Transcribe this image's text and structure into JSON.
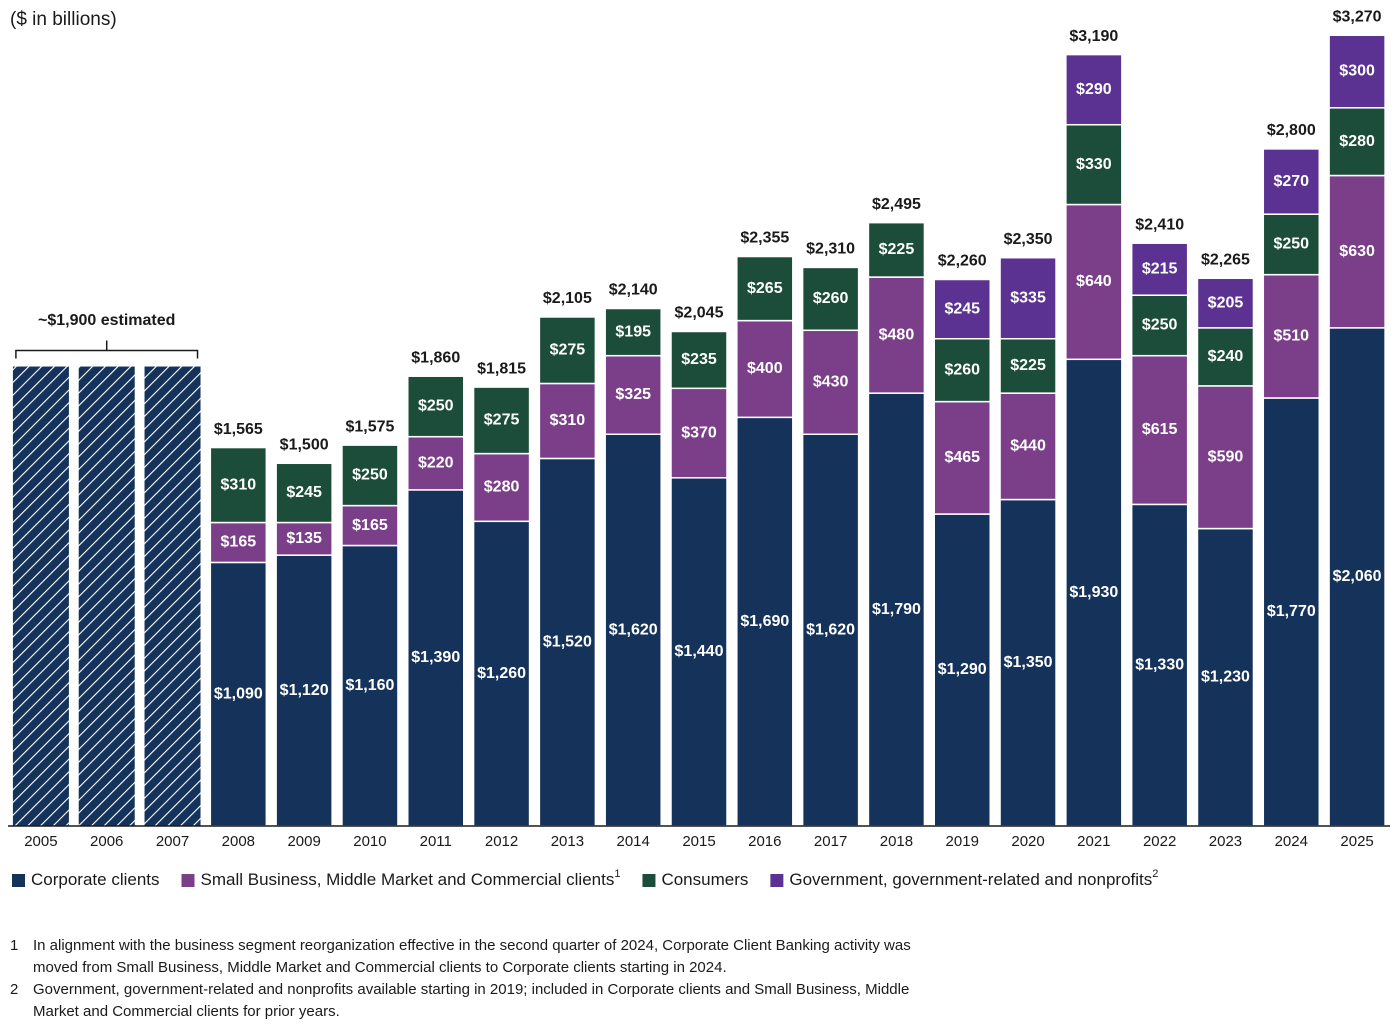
{
  "chart_data": {
    "type": "stacked-bar",
    "unit_label": "($ in billions)",
    "categories": [
      "2005",
      "2006",
      "2007",
      "2008",
      "2009",
      "2010",
      "2011",
      "2012",
      "2013",
      "2014",
      "2015",
      "2016",
      "2017",
      "2018",
      "2019",
      "2020",
      "2021",
      "2022",
      "2023",
      "2024",
      "2025"
    ],
    "series": [
      {
        "name": "Corporate clients",
        "color": "#14325a",
        "values": [
          null,
          null,
          null,
          1090,
          1120,
          1160,
          1390,
          1260,
          1520,
          1620,
          1440,
          1690,
          1620,
          1790,
          1290,
          1350,
          1930,
          1330,
          1230,
          1770,
          2060
        ],
        "value_labels": [
          null,
          null,
          null,
          "$1,090",
          "$1,120",
          "$1,160",
          "$1,390",
          "$1,260",
          "$1,520",
          "$1,620",
          "$1,440",
          "$1,690",
          "$1,620",
          "$1,790",
          "$1,290",
          "$1,350",
          "$1,930",
          "$1,330",
          "$1,230",
          "$1,770",
          "$2,060"
        ]
      },
      {
        "name": "Small Business, Middle Market and Commercial clients",
        "note": "1",
        "color": "#7b3f8a",
        "values": [
          null,
          null,
          null,
          165,
          135,
          165,
          220,
          280,
          310,
          325,
          370,
          400,
          430,
          480,
          465,
          440,
          640,
          615,
          590,
          510,
          630
        ],
        "value_labels": [
          null,
          null,
          null,
          "$165",
          "$135",
          "$165",
          "$220",
          "$280",
          "$310",
          "$325",
          "$370",
          "$400",
          "$430",
          "$480",
          "$465",
          "$440",
          "$640",
          "$615",
          "$590",
          "$510",
          "$630"
        ]
      },
      {
        "name": "Consumers",
        "color": "#1b4d3a",
        "values": [
          null,
          null,
          null,
          310,
          245,
          250,
          250,
          275,
          275,
          195,
          235,
          265,
          260,
          225,
          260,
          225,
          330,
          250,
          240,
          250,
          280
        ],
        "value_labels": [
          null,
          null,
          null,
          "$310",
          "$245",
          "$250",
          "$250",
          "$275",
          "$275",
          "$195",
          "$235",
          "$265",
          "$260",
          "$225",
          "$260",
          "$225",
          "$330",
          "$250",
          "$240",
          "$250",
          "$280"
        ]
      },
      {
        "name": "Government, government-related and nonprofits",
        "note": "2",
        "color": "#5b3291",
        "values": [
          null,
          null,
          null,
          null,
          null,
          null,
          null,
          null,
          null,
          null,
          null,
          null,
          null,
          null,
          245,
          335,
          290,
          215,
          205,
          270,
          300
        ],
        "value_labels": [
          null,
          null,
          null,
          null,
          null,
          null,
          null,
          null,
          null,
          null,
          null,
          null,
          null,
          null,
          "$245",
          "$335",
          "$290",
          "$215",
          "$205",
          "$270",
          "$300"
        ]
      }
    ],
    "totals": [
      null,
      null,
      null,
      1565,
      1500,
      1575,
      1860,
      1815,
      2105,
      2140,
      2045,
      2355,
      2310,
      2495,
      2260,
      2350,
      3190,
      2410,
      2265,
      2800,
      3270
    ],
    "total_labels": [
      null,
      null,
      null,
      "$1,565",
      "$1,500",
      "$1,575",
      "$1,860",
      "$1,815",
      "$2,105",
      "$2,140",
      "$2,045",
      "$2,355",
      "$2,310",
      "$2,495",
      "$2,260",
      "$2,350",
      "$3,190",
      "$2,410",
      "$2,265",
      "$2,800",
      "$3,270"
    ],
    "estimate": {
      "label": "~$1,900 estimated",
      "color": "#14325a",
      "values": [
        1900,
        1900,
        1900,
        null,
        null,
        null,
        null,
        null,
        null,
        null,
        null,
        null,
        null,
        null,
        null,
        null,
        null,
        null,
        null,
        null,
        null
      ]
    },
    "ylim": [
      0,
      3300
    ],
    "footnotes": [
      {
        "marker": "1",
        "text": "In alignment with the business segment reorganization effective in the second quarter of 2024, Corporate Client Banking activity was moved from Small Business, Middle Market and Commercial clients to Corporate clients starting in 2024."
      },
      {
        "marker": "2",
        "text": "Government, government-related and nonprofits available starting in 2019; included in Corporate clients and Small Business, Middle Market and Commercial clients for prior years."
      }
    ]
  }
}
